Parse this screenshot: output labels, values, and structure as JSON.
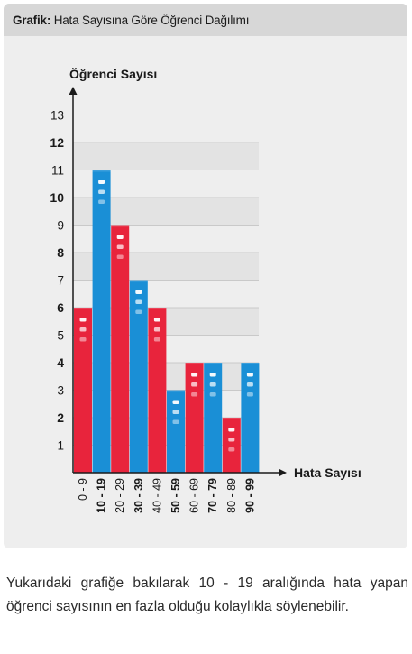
{
  "header": {
    "label": "Grafik:",
    "title": "Hata Sayısına Göre Öğrenci Dağılımı"
  },
  "caption": "Yukarıdaki grafiğe bakılarak 10 - 19 aralığında hata yapan öğrenci sayısının en fazla olduğu kolaylıkla söylenebilir.",
  "colors": {
    "red": "#e8243c",
    "blue": "#1a8fd6",
    "background": "#eeeeee",
    "header": "#d7d7d7"
  },
  "chart_data": {
    "type": "bar",
    "ylabel": "Öğrenci Sayısı",
    "xlabel": "Hata Sayısı",
    "categories": [
      "0 - 9",
      "10 - 19",
      "20 - 29",
      "30 - 39",
      "40 - 49",
      "50 - 59",
      "60 - 69",
      "70 - 79",
      "80 - 89",
      "90 - 99"
    ],
    "values": [
      6,
      11,
      9,
      7,
      6,
      3,
      4,
      4,
      2,
      4
    ],
    "bar_colors": [
      "red",
      "blue",
      "red",
      "blue",
      "red",
      "blue",
      "red",
      "blue",
      "red",
      "blue"
    ],
    "bold_categories": [
      false,
      true,
      false,
      true,
      false,
      true,
      false,
      true,
      false,
      true
    ],
    "yticks": [
      1,
      2,
      3,
      4,
      5,
      6,
      7,
      8,
      9,
      10,
      11,
      12,
      13
    ],
    "bold_yticks": [
      2,
      4,
      6,
      8,
      10,
      12
    ],
    "ylim": [
      0,
      13
    ],
    "grid": true
  }
}
